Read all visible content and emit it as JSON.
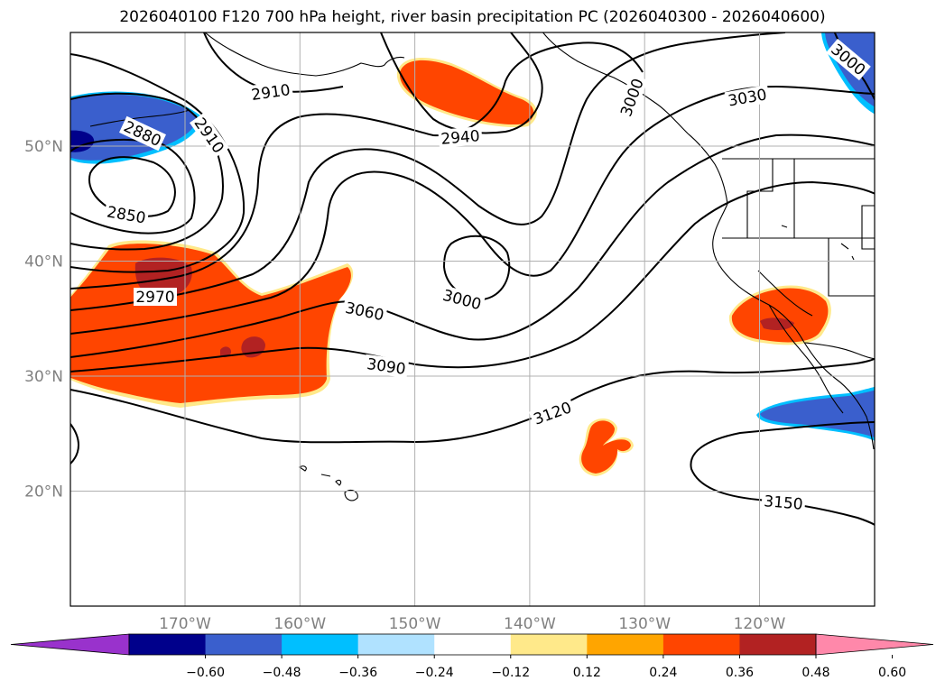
{
  "title": "2026040100 F120 700 hPa height, river basin precipitation PC (2026040300 - 2026040600)",
  "map": {
    "lat_ticks": [
      {
        "value": 50,
        "label": "50°N"
      },
      {
        "value": 40,
        "label": "40°N"
      },
      {
        "value": 30,
        "label": "30°N"
      },
      {
        "value": 20,
        "label": "20°N"
      }
    ],
    "lon_ticks": [
      {
        "value": -170,
        "label": "170°W"
      },
      {
        "value": -160,
        "label": "160°W"
      },
      {
        "value": -150,
        "label": "150°W"
      },
      {
        "value": -140,
        "label": "140°W"
      },
      {
        "value": -130,
        "label": "130°W"
      },
      {
        "value": -120,
        "label": "120°W"
      }
    ],
    "contour_labels": [
      "2850",
      "2880",
      "2910",
      "2940",
      "2970",
      "3000",
      "3030",
      "3060",
      "3090",
      "3120",
      "3150"
    ],
    "colors": {
      "neg_strong": "#3a5fcd",
      "neg_darkest": "#00008b",
      "neg_light": "#00bfff",
      "pos_strong": "#ff4500",
      "pos_darker": "#b22222",
      "pos_light": "#ffe98a",
      "grid": "#b0b0b0"
    }
  },
  "colorbar": {
    "colors": [
      "#9932cc",
      "#00008b",
      "#3a5fcd",
      "#00bfff",
      "#b0e2ff",
      "#ffffff",
      "#ffe98a",
      "#ffa500",
      "#ff4500",
      "#b22222",
      "#ff88aa"
    ],
    "labels": [
      "−0.60",
      "−0.48",
      "−0.36",
      "−0.24",
      "−0.12",
      "0.12",
      "0.24",
      "0.36",
      "0.48",
      "0.60"
    ]
  }
}
